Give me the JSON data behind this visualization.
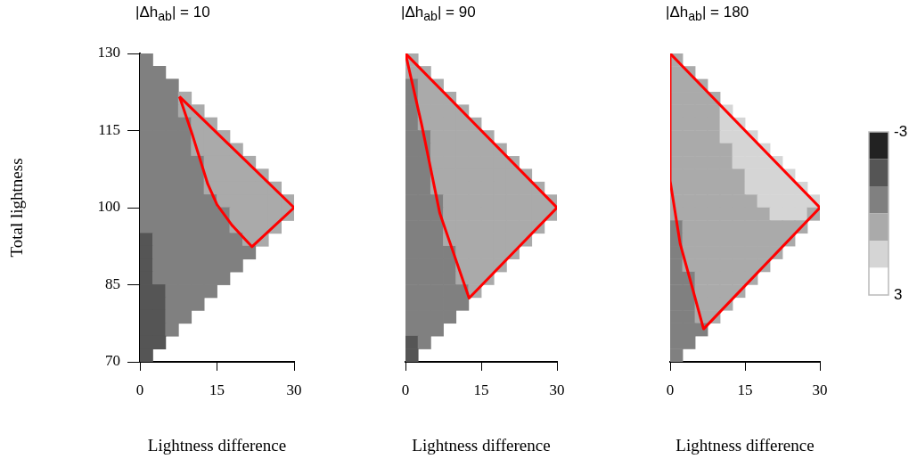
{
  "chart_data": [
    {
      "type": "scatter",
      "title": "|Δh$_{ab}$| = 10",
      "xlabel": "Lightness difference",
      "ylabel": "Total lightness",
      "xlim": [
        0,
        30
      ],
      "xticks": [
        0,
        15,
        30
      ],
      "ylim": [
        70,
        130
      ],
      "yticks": [
        70,
        85,
        100,
        115,
        130
      ],
      "grid": false,
      "legend": false,
      "series": [
        {
          "type": "scatter",
          "marker": "square",
          "x": [
            1.25,
            1.25,
            3.75,
            1.25,
            3.75,
            6.25,
            1.25,
            3.75,
            6.25,
            8.75,
            1.25,
            3.75,
            6.25,
            8.75,
            11.25,
            1.25,
            3.75,
            6.25,
            8.75,
            11.25,
            13.75,
            1.25,
            3.75,
            6.25,
            8.75,
            11.25,
            13.75,
            16.25,
            1.25,
            3.75,
            6.25,
            8.75,
            11.25,
            13.75,
            16.25,
            18.75,
            1.25,
            3.75,
            6.25,
            8.75,
            11.25,
            13.75,
            16.25,
            18.75,
            21.25,
            1.25,
            3.75,
            6.25,
            8.75,
            11.25,
            13.75,
            16.25,
            18.75,
            21.25,
            23.75,
            1.25,
            3.75,
            6.25,
            8.75,
            11.25,
            13.75,
            16.25,
            18.75,
            21.25,
            23.75,
            26.25,
            1.25,
            3.75,
            6.25,
            8.75,
            11.25,
            13.75,
            16.25,
            18.75,
            21.25,
            23.75,
            26.25,
            28.75,
            1.25,
            3.75,
            6.25,
            8.75,
            11.25,
            13.75,
            16.25,
            18.75,
            21.25,
            23.75,
            26.25,
            28.75,
            1.25,
            3.75,
            6.25,
            8.75,
            11.25,
            13.75,
            16.25,
            18.75,
            21.25,
            23.75,
            26.25,
            1.25,
            3.75,
            6.25,
            8.75,
            11.25,
            13.75,
            16.25,
            18.75,
            21.25,
            23.75,
            1.25,
            3.75,
            6.25,
            8.75,
            11.25,
            13.75,
            16.25,
            18.75,
            21.25,
            1.25,
            3.75,
            6.25,
            8.75,
            11.25,
            13.75,
            16.25,
            18.75,
            1.25,
            3.75,
            6.25,
            8.75,
            11.25,
            13.75,
            16.25,
            1.25,
            3.75,
            6.25,
            8.75,
            11.25,
            13.75,
            1.25,
            3.75,
            6.25,
            8.75,
            11.25,
            1.25,
            3.75,
            6.25,
            8.75,
            1.25,
            3.75,
            6.25,
            1.25,
            3.75,
            1.25
          ],
          "values": [
            128.75,
            126.25,
            126.25,
            123.75,
            123.75,
            123.75,
            121.25,
            121.25,
            121.25,
            121.25,
            118.75,
            118.75,
            118.75,
            118.75,
            118.75,
            116.25,
            116.25,
            116.25,
            116.25,
            116.25,
            116.25,
            113.75,
            113.75,
            113.75,
            113.75,
            113.75,
            113.75,
            113.75,
            111.25,
            111.25,
            111.25,
            111.25,
            111.25,
            111.25,
            111.25,
            111.25,
            108.75,
            108.75,
            108.75,
            108.75,
            108.75,
            108.75,
            108.75,
            108.75,
            108.75,
            106.25,
            106.25,
            106.25,
            106.25,
            106.25,
            106.25,
            106.25,
            106.25,
            106.25,
            106.25,
            103.75,
            103.75,
            103.75,
            103.75,
            103.75,
            103.75,
            103.75,
            103.75,
            103.75,
            103.75,
            103.75,
            101.25,
            101.25,
            101.25,
            101.25,
            101.25,
            101.25,
            101.25,
            101.25,
            101.25,
            101.25,
            101.25,
            101.25,
            98.75,
            98.75,
            98.75,
            98.75,
            98.75,
            98.75,
            98.75,
            98.75,
            98.75,
            98.75,
            98.75,
            98.75,
            96.25,
            96.25,
            96.25,
            96.25,
            96.25,
            96.25,
            96.25,
            96.25,
            96.25,
            96.25,
            96.25,
            93.75,
            93.75,
            93.75,
            93.75,
            93.75,
            93.75,
            93.75,
            93.75,
            93.75,
            93.75,
            91.25,
            91.25,
            91.25,
            91.25,
            91.25,
            91.25,
            91.25,
            91.25,
            91.25,
            88.75,
            88.75,
            88.75,
            88.75,
            88.75,
            88.75,
            88.75,
            88.75,
            86.25,
            86.25,
            86.25,
            86.25,
            86.25,
            86.25,
            86.25,
            83.75,
            83.75,
            83.75,
            83.75,
            83.75,
            83.75,
            81.25,
            81.25,
            81.25,
            81.25,
            81.25,
            78.75,
            78.75,
            78.75,
            78.75,
            76.25,
            76.25,
            76.25,
            73.75,
            73.75,
            71.25
          ],
          "colors": [
            "#808080",
            "#808080",
            "#808080",
            "#808080",
            "#808080",
            "#808080",
            "#808080",
            "#808080",
            "#808080",
            "#aaaaaa",
            "#808080",
            "#808080",
            "#808080",
            "#aaaaaa",
            "#aaaaaa",
            "#808080",
            "#808080",
            "#808080",
            "#808080",
            "#aaaaaa",
            "#aaaaaa",
            "#808080",
            "#808080",
            "#808080",
            "#808080",
            "#aaaaaa",
            "#aaaaaa",
            "#aaaaaa",
            "#808080",
            "#808080",
            "#808080",
            "#808080",
            "#aaaaaa",
            "#aaaaaa",
            "#aaaaaa",
            "#aaaaaa",
            "#808080",
            "#808080",
            "#808080",
            "#808080",
            "#808080",
            "#aaaaaa",
            "#aaaaaa",
            "#aaaaaa",
            "#aaaaaa",
            "#808080",
            "#808080",
            "#808080",
            "#808080",
            "#808080",
            "#aaaaaa",
            "#aaaaaa",
            "#aaaaaa",
            "#aaaaaa",
            "#aaaaaa",
            "#808080",
            "#808080",
            "#808080",
            "#808080",
            "#808080",
            "#aaaaaa",
            "#aaaaaa",
            "#aaaaaa",
            "#aaaaaa",
            "#aaaaaa",
            "#aaaaaa",
            "#808080",
            "#808080",
            "#808080",
            "#808080",
            "#808080",
            "#808080",
            "#aaaaaa",
            "#aaaaaa",
            "#aaaaaa",
            "#aaaaaa",
            "#aaaaaa",
            "#aaaaaa",
            "#808080",
            "#808080",
            "#808080",
            "#808080",
            "#808080",
            "#808080",
            "#808080",
            "#aaaaaa",
            "#aaaaaa",
            "#aaaaaa",
            "#aaaaaa",
            "#aaaaaa",
            "#808080",
            "#808080",
            "#808080",
            "#808080",
            "#808080",
            "#808080",
            "#808080",
            "#aaaaaa",
            "#aaaaaa",
            "#aaaaaa",
            "#aaaaaa",
            "#555555",
            "#808080",
            "#808080",
            "#808080",
            "#808080",
            "#808080",
            "#808080",
            "#808080",
            "#aaaaaa",
            "#aaaaaa",
            "#555555",
            "#808080",
            "#808080",
            "#808080",
            "#808080",
            "#808080",
            "#808080",
            "#808080",
            "#808080",
            "#555555",
            "#808080",
            "#808080",
            "#808080",
            "#808080",
            "#808080",
            "#808080",
            "#808080",
            "#555555",
            "#808080",
            "#808080",
            "#808080",
            "#808080",
            "#808080",
            "#808080",
            "#555555",
            "#555555",
            "#808080",
            "#808080",
            "#808080",
            "#808080",
            "#555555",
            "#555555",
            "#808080",
            "#808080",
            "#808080",
            "#555555",
            "#555555",
            "#808080",
            "#808080",
            "#555555",
            "#555555",
            "#808080",
            "#555555",
            "#555555",
            "#555555"
          ]
        },
        {
          "type": "line",
          "marker": "none",
          "color": "#ff0000",
          "x": [
            7.7,
            30
          ],
          "values": [
            121.6,
            100
          ]
        },
        {
          "type": "line",
          "marker": "none",
          "color": "#ff0000",
          "x": [
            7.7,
            10.3,
            13.2,
            15.0,
            17.9,
            21.8,
            30
          ],
          "values": [
            121.6,
            113.9,
            104.6,
            100.6,
            96.6,
            92.4,
            100
          ]
        }
      ]
    },
    {
      "type": "scatter",
      "title": "|Δh$_{ab}$| = 90",
      "xlabel": "Lightness difference",
      "xlim": [
        0,
        30
      ],
      "xticks": [
        0,
        15,
        30
      ],
      "ylim": [
        70,
        130
      ],
      "grid": false,
      "legend": false,
      "tick_labels": "x",
      "series": [
        {
          "type": "scatter",
          "marker": "square",
          "x": [
            1.25,
            1.25,
            3.75,
            1.25,
            3.75,
            6.25,
            1.25,
            3.75,
            6.25,
            8.75,
            1.25,
            3.75,
            6.25,
            8.75,
            11.25,
            1.25,
            3.75,
            6.25,
            8.75,
            11.25,
            13.75,
            1.25,
            3.75,
            6.25,
            8.75,
            11.25,
            13.75,
            16.25,
            1.25,
            3.75,
            6.25,
            8.75,
            11.25,
            13.75,
            16.25,
            18.75,
            1.25,
            3.75,
            6.25,
            8.75,
            11.25,
            13.75,
            16.25,
            18.75,
            21.25,
            1.25,
            3.75,
            6.25,
            8.75,
            11.25,
            13.75,
            16.25,
            18.75,
            21.25,
            23.75,
            1.25,
            3.75,
            6.25,
            8.75,
            11.25,
            13.75,
            16.25,
            18.75,
            21.25,
            23.75,
            26.25,
            1.25,
            3.75,
            6.25,
            8.75,
            11.25,
            13.75,
            16.25,
            18.75,
            21.25,
            23.75,
            26.25,
            28.75,
            1.25,
            3.75,
            6.25,
            8.75,
            11.25,
            13.75,
            16.25,
            18.75,
            21.25,
            23.75,
            26.25,
            28.75,
            1.25,
            3.75,
            6.25,
            8.75,
            11.25,
            13.75,
            16.25,
            18.75,
            21.25,
            23.75,
            26.25,
            1.25,
            3.75,
            6.25,
            8.75,
            11.25,
            13.75,
            16.25,
            18.75,
            21.25,
            23.75,
            1.25,
            3.75,
            6.25,
            8.75,
            11.25,
            13.75,
            16.25,
            18.75,
            21.25,
            1.25,
            3.75,
            6.25,
            8.75,
            11.25,
            13.75,
            16.25,
            18.75,
            1.25,
            3.75,
            6.25,
            8.75,
            11.25,
            13.75,
            16.25,
            1.25,
            3.75,
            6.25,
            8.75,
            11.25,
            13.75,
            1.25,
            3.75,
            6.25,
            8.75,
            11.25,
            1.25,
            3.75,
            6.25,
            8.75,
            1.25,
            3.75,
            6.25,
            1.25,
            3.75,
            1.25
          ],
          "values": [
            128.75,
            126.25,
            126.25,
            123.75,
            123.75,
            123.75,
            121.25,
            121.25,
            121.25,
            121.25,
            118.75,
            118.75,
            118.75,
            118.75,
            118.75,
            116.25,
            116.25,
            116.25,
            116.25,
            116.25,
            116.25,
            113.75,
            113.75,
            113.75,
            113.75,
            113.75,
            113.75,
            113.75,
            111.25,
            111.25,
            111.25,
            111.25,
            111.25,
            111.25,
            111.25,
            111.25,
            108.75,
            108.75,
            108.75,
            108.75,
            108.75,
            108.75,
            108.75,
            108.75,
            108.75,
            106.25,
            106.25,
            106.25,
            106.25,
            106.25,
            106.25,
            106.25,
            106.25,
            106.25,
            106.25,
            103.75,
            103.75,
            103.75,
            103.75,
            103.75,
            103.75,
            103.75,
            103.75,
            103.75,
            103.75,
            103.75,
            101.25,
            101.25,
            101.25,
            101.25,
            101.25,
            101.25,
            101.25,
            101.25,
            101.25,
            101.25,
            101.25,
            101.25,
            98.75,
            98.75,
            98.75,
            98.75,
            98.75,
            98.75,
            98.75,
            98.75,
            98.75,
            98.75,
            98.75,
            98.75,
            96.25,
            96.25,
            96.25,
            96.25,
            96.25,
            96.25,
            96.25,
            96.25,
            96.25,
            96.25,
            96.25,
            93.75,
            93.75,
            93.75,
            93.75,
            93.75,
            93.75,
            93.75,
            93.75,
            93.75,
            93.75,
            91.25,
            91.25,
            91.25,
            91.25,
            91.25,
            91.25,
            91.25,
            91.25,
            91.25,
            88.75,
            88.75,
            88.75,
            88.75,
            88.75,
            88.75,
            88.75,
            88.75,
            86.25,
            86.25,
            86.25,
            86.25,
            86.25,
            86.25,
            86.25,
            83.75,
            83.75,
            83.75,
            83.75,
            83.75,
            83.75,
            81.25,
            81.25,
            81.25,
            81.25,
            81.25,
            78.75,
            78.75,
            78.75,
            78.75,
            76.25,
            76.25,
            76.25,
            73.75,
            73.75,
            71.25
          ],
          "colors": [
            "#aaaaaa",
            "#aaaaaa",
            "#aaaaaa",
            "#808080",
            "#aaaaaa",
            "#aaaaaa",
            "#808080",
            "#aaaaaa",
            "#aaaaaa",
            "#aaaaaa",
            "#808080",
            "#aaaaaa",
            "#aaaaaa",
            "#aaaaaa",
            "#aaaaaa",
            "#808080",
            "#aaaaaa",
            "#aaaaaa",
            "#aaaaaa",
            "#aaaaaa",
            "#aaaaaa",
            "#808080",
            "#808080",
            "#aaaaaa",
            "#aaaaaa",
            "#aaaaaa",
            "#aaaaaa",
            "#aaaaaa",
            "#808080",
            "#808080",
            "#aaaaaa",
            "#aaaaaa",
            "#aaaaaa",
            "#aaaaaa",
            "#aaaaaa",
            "#aaaaaa",
            "#808080",
            "#808080",
            "#aaaaaa",
            "#aaaaaa",
            "#aaaaaa",
            "#aaaaaa",
            "#aaaaaa",
            "#aaaaaa",
            "#aaaaaa",
            "#808080",
            "#808080",
            "#aaaaaa",
            "#aaaaaa",
            "#aaaaaa",
            "#aaaaaa",
            "#aaaaaa",
            "#aaaaaa",
            "#aaaaaa",
            "#aaaaaa",
            "#808080",
            "#808080",
            "#aaaaaa",
            "#aaaaaa",
            "#aaaaaa",
            "#aaaaaa",
            "#aaaaaa",
            "#aaaaaa",
            "#aaaaaa",
            "#aaaaaa",
            "#aaaaaa",
            "#808080",
            "#808080",
            "#808080",
            "#aaaaaa",
            "#aaaaaa",
            "#aaaaaa",
            "#aaaaaa",
            "#aaaaaa",
            "#aaaaaa",
            "#aaaaaa",
            "#aaaaaa",
            "#aaaaaa",
            "#808080",
            "#808080",
            "#808080",
            "#aaaaaa",
            "#aaaaaa",
            "#aaaaaa",
            "#aaaaaa",
            "#aaaaaa",
            "#aaaaaa",
            "#aaaaaa",
            "#aaaaaa",
            "#aaaaaa",
            "#808080",
            "#808080",
            "#808080",
            "#aaaaaa",
            "#aaaaaa",
            "#aaaaaa",
            "#aaaaaa",
            "#aaaaaa",
            "#aaaaaa",
            "#aaaaaa",
            "#aaaaaa",
            "#808080",
            "#808080",
            "#808080",
            "#aaaaaa",
            "#aaaaaa",
            "#aaaaaa",
            "#aaaaaa",
            "#aaaaaa",
            "#aaaaaa",
            "#aaaaaa",
            "#808080",
            "#808080",
            "#808080",
            "#808080",
            "#aaaaaa",
            "#aaaaaa",
            "#aaaaaa",
            "#aaaaaa",
            "#aaaaaa",
            "#808080",
            "#808080",
            "#808080",
            "#808080",
            "#aaaaaa",
            "#aaaaaa",
            "#aaaaaa",
            "#aaaaaa",
            "#808080",
            "#808080",
            "#808080",
            "#808080",
            "#aaaaaa",
            "#aaaaaa",
            "#aaaaaa",
            "#808080",
            "#808080",
            "#808080",
            "#808080",
            "#808080",
            "#aaaaaa",
            "#808080",
            "#808080",
            "#808080",
            "#808080",
            "#808080",
            "#808080",
            "#808080",
            "#808080",
            "#808080",
            "#808080",
            "#808080",
            "#808080",
            "#555555",
            "#808080",
            "#555555"
          ]
        },
        {
          "type": "line",
          "marker": "none",
          "color": "#ff0000",
          "x": [
            0,
            30
          ],
          "values": [
            130,
            100
          ]
        },
        {
          "type": "line",
          "marker": "none",
          "color": "#ff0000",
          "x": [
            0,
            3.2,
            6.8,
            12.6,
            30
          ],
          "values": [
            130,
            116.2,
            98.9,
            82.4,
            100
          ]
        }
      ]
    },
    {
      "type": "scatter",
      "title": "|Δh$_{ab}$| = 180",
      "xlabel": "Lightness difference",
      "xlim": [
        0,
        30
      ],
      "xticks": [
        0,
        15,
        30
      ],
      "ylim": [
        70,
        130
      ],
      "clim": [
        -3,
        3
      ],
      "cticks": [
        -3,
        3
      ],
      "grid": false,
      "legend": false,
      "tick_labels": "x",
      "series": [
        {
          "type": "scatter",
          "marker": "square",
          "x": [
            1.25,
            1.25,
            3.75,
            1.25,
            3.75,
            6.25,
            1.25,
            3.75,
            6.25,
            8.75,
            1.25,
            3.75,
            6.25,
            8.75,
            11.25,
            1.25,
            3.75,
            6.25,
            8.75,
            11.25,
            13.75,
            1.25,
            3.75,
            6.25,
            8.75,
            11.25,
            13.75,
            16.25,
            1.25,
            3.75,
            6.25,
            8.75,
            11.25,
            13.75,
            16.25,
            18.75,
            1.25,
            3.75,
            6.25,
            8.75,
            11.25,
            13.75,
            16.25,
            18.75,
            21.25,
            1.25,
            3.75,
            6.25,
            8.75,
            11.25,
            13.75,
            16.25,
            18.75,
            21.25,
            23.75,
            1.25,
            3.75,
            6.25,
            8.75,
            11.25,
            13.75,
            16.25,
            18.75,
            21.25,
            23.75,
            26.25,
            1.25,
            3.75,
            6.25,
            8.75,
            11.25,
            13.75,
            16.25,
            18.75,
            21.25,
            23.75,
            26.25,
            28.75,
            1.25,
            3.75,
            6.25,
            8.75,
            11.25,
            13.75,
            16.25,
            18.75,
            21.25,
            23.75,
            26.25,
            28.75,
            1.25,
            3.75,
            6.25,
            8.75,
            11.25,
            13.75,
            16.25,
            18.75,
            21.25,
            23.75,
            26.25,
            1.25,
            3.75,
            6.25,
            8.75,
            11.25,
            13.75,
            16.25,
            18.75,
            21.25,
            23.75,
            1.25,
            3.75,
            6.25,
            8.75,
            11.25,
            13.75,
            16.25,
            18.75,
            21.25,
            1.25,
            3.75,
            6.25,
            8.75,
            11.25,
            13.75,
            16.25,
            18.75,
            1.25,
            3.75,
            6.25,
            8.75,
            11.25,
            13.75,
            16.25,
            1.25,
            3.75,
            6.25,
            8.75,
            11.25,
            13.75,
            1.25,
            3.75,
            6.25,
            8.75,
            11.25,
            1.25,
            3.75,
            6.25,
            8.75,
            1.25,
            3.75,
            6.25,
            1.25,
            3.75,
            1.25
          ],
          "values": [
            128.75,
            126.25,
            126.25,
            123.75,
            123.75,
            123.75,
            121.25,
            121.25,
            121.25,
            121.25,
            118.75,
            118.75,
            118.75,
            118.75,
            118.75,
            116.25,
            116.25,
            116.25,
            116.25,
            116.25,
            116.25,
            113.75,
            113.75,
            113.75,
            113.75,
            113.75,
            113.75,
            113.75,
            111.25,
            111.25,
            111.25,
            111.25,
            111.25,
            111.25,
            111.25,
            111.25,
            108.75,
            108.75,
            108.75,
            108.75,
            108.75,
            108.75,
            108.75,
            108.75,
            108.75,
            106.25,
            106.25,
            106.25,
            106.25,
            106.25,
            106.25,
            106.25,
            106.25,
            106.25,
            106.25,
            103.75,
            103.75,
            103.75,
            103.75,
            103.75,
            103.75,
            103.75,
            103.75,
            103.75,
            103.75,
            103.75,
            101.25,
            101.25,
            101.25,
            101.25,
            101.25,
            101.25,
            101.25,
            101.25,
            101.25,
            101.25,
            101.25,
            101.25,
            98.75,
            98.75,
            98.75,
            98.75,
            98.75,
            98.75,
            98.75,
            98.75,
            98.75,
            98.75,
            98.75,
            98.75,
            96.25,
            96.25,
            96.25,
            96.25,
            96.25,
            96.25,
            96.25,
            96.25,
            96.25,
            96.25,
            96.25,
            93.75,
            93.75,
            93.75,
            93.75,
            93.75,
            93.75,
            93.75,
            93.75,
            93.75,
            93.75,
            91.25,
            91.25,
            91.25,
            91.25,
            91.25,
            91.25,
            91.25,
            91.25,
            91.25,
            88.75,
            88.75,
            88.75,
            88.75,
            88.75,
            88.75,
            88.75,
            88.75,
            86.25,
            86.25,
            86.25,
            86.25,
            86.25,
            86.25,
            86.25,
            83.75,
            83.75,
            83.75,
            83.75,
            83.75,
            83.75,
            81.25,
            81.25,
            81.25,
            81.25,
            81.25,
            78.75,
            78.75,
            78.75,
            78.75,
            76.25,
            76.25,
            76.25,
            73.75,
            73.75,
            71.25
          ],
          "colors": [
            "#aaaaaa",
            "#aaaaaa",
            "#aaaaaa",
            "#aaaaaa",
            "#aaaaaa",
            "#aaaaaa",
            "#aaaaaa",
            "#aaaaaa",
            "#aaaaaa",
            "#aaaaaa",
            "#aaaaaa",
            "#aaaaaa",
            "#aaaaaa",
            "#aaaaaa",
            "#d5d5d5",
            "#aaaaaa",
            "#aaaaaa",
            "#aaaaaa",
            "#aaaaaa",
            "#d5d5d5",
            "#d5d5d5",
            "#aaaaaa",
            "#aaaaaa",
            "#aaaaaa",
            "#aaaaaa",
            "#d5d5d5",
            "#d5d5d5",
            "#d5d5d5",
            "#aaaaaa",
            "#aaaaaa",
            "#aaaaaa",
            "#aaaaaa",
            "#aaaaaa",
            "#d5d5d5",
            "#d5d5d5",
            "#d5d5d5",
            "#aaaaaa",
            "#aaaaaa",
            "#aaaaaa",
            "#aaaaaa",
            "#aaaaaa",
            "#d5d5d5",
            "#d5d5d5",
            "#d5d5d5",
            "#d5d5d5",
            "#aaaaaa",
            "#aaaaaa",
            "#aaaaaa",
            "#aaaaaa",
            "#aaaaaa",
            "#aaaaaa",
            "#d5d5d5",
            "#d5d5d5",
            "#d5d5d5",
            "#d5d5d5",
            "#aaaaaa",
            "#aaaaaa",
            "#aaaaaa",
            "#aaaaaa",
            "#aaaaaa",
            "#aaaaaa",
            "#d5d5d5",
            "#d5d5d5",
            "#d5d5d5",
            "#d5d5d5",
            "#d5d5d5",
            "#aaaaaa",
            "#aaaaaa",
            "#aaaaaa",
            "#aaaaaa",
            "#aaaaaa",
            "#aaaaaa",
            "#aaaaaa",
            "#d5d5d5",
            "#d5d5d5",
            "#d5d5d5",
            "#d5d5d5",
            "#d5d5d5",
            "#aaaaaa",
            "#aaaaaa",
            "#aaaaaa",
            "#aaaaaa",
            "#aaaaaa",
            "#aaaaaa",
            "#aaaaaa",
            "#aaaaaa",
            "#d5d5d5",
            "#d5d5d5",
            "#d5d5d5",
            "#aaaaaa",
            "#808080",
            "#aaaaaa",
            "#aaaaaa",
            "#aaaaaa",
            "#aaaaaa",
            "#aaaaaa",
            "#aaaaaa",
            "#aaaaaa",
            "#aaaaaa",
            "#aaaaaa",
            "#aaaaaa",
            "#808080",
            "#aaaaaa",
            "#aaaaaa",
            "#aaaaaa",
            "#aaaaaa",
            "#aaaaaa",
            "#aaaaaa",
            "#aaaaaa",
            "#aaaaaa",
            "#aaaaaa",
            "#808080",
            "#aaaaaa",
            "#aaaaaa",
            "#aaaaaa",
            "#aaaaaa",
            "#aaaaaa",
            "#aaaaaa",
            "#aaaaaa",
            "#aaaaaa",
            "#808080",
            "#aaaaaa",
            "#aaaaaa",
            "#aaaaaa",
            "#aaaaaa",
            "#aaaaaa",
            "#aaaaaa",
            "#aaaaaa",
            "#808080",
            "#808080",
            "#aaaaaa",
            "#aaaaaa",
            "#aaaaaa",
            "#aaaaaa",
            "#aaaaaa",
            "#808080",
            "#808080",
            "#aaaaaa",
            "#aaaaaa",
            "#aaaaaa",
            "#aaaaaa",
            "#808080",
            "#808080",
            "#aaaaaa",
            "#aaaaaa",
            "#aaaaaa",
            "#808080",
            "#808080",
            "#aaaaaa",
            "#aaaaaa",
            "#808080",
            "#808080",
            "#808080",
            "#808080",
            "#808080",
            "#808080"
          ]
        },
        {
          "type": "line",
          "marker": "none",
          "color": "#ff0000",
          "x": [
            0,
            30
          ],
          "values": [
            130,
            100
          ]
        },
        {
          "type": "line",
          "marker": "none",
          "color": "#ff0000",
          "x": [
            0,
            0,
            2,
            4,
            6.7,
            30
          ],
          "values": [
            130,
            105.2,
            93,
            86,
            76.4,
            100
          ]
        }
      ]
    }
  ]
}
